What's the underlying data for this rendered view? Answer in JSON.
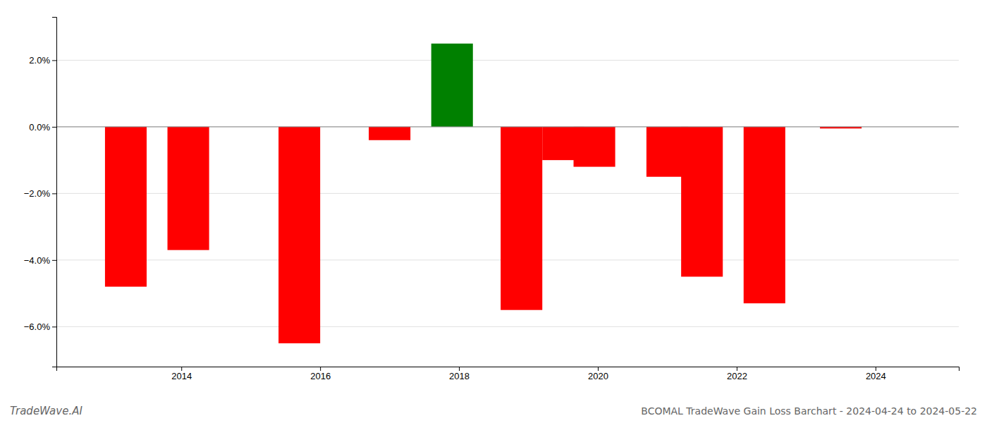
{
  "chart_data": {
    "type": "bar",
    "title": "BCOMAL TradeWave Gain Loss Barchart - 2024-04-24 to 2024-05-22",
    "annotations": [
      "TradeWave.AI"
    ],
    "x": [
      2013.2,
      2014.1,
      2015.7,
      2017.0,
      2017.9,
      2018.9,
      2019.5,
      2019.95,
      2021.0,
      2021.5,
      2022.4,
      2023.5
    ],
    "values": [
      -4.8,
      -3.7,
      -6.5,
      -0.4,
      2.5,
      -5.5,
      -1.0,
      -1.2,
      -1.5,
      -4.5,
      -5.3,
      -0.05
    ],
    "colors": [
      "#ff0000",
      "#ff0000",
      "#ff0000",
      "#ff0000",
      "#008000",
      "#ff0000",
      "#ff0000",
      "#ff0000",
      "#ff0000",
      "#ff0000",
      "#ff0000",
      "#ff0000"
    ],
    "xlim": [
      2012.2,
      2025.2
    ],
    "xticks": [
      2014,
      2016,
      2018,
      2020,
      2022,
      2024
    ],
    "ylim": [
      -7.2,
      3.3
    ],
    "yticks": [
      {
        "value": -6.0,
        "label": "−6.0%"
      },
      {
        "value": -4.0,
        "label": "−4.0%"
      },
      {
        "value": -2.0,
        "label": "−2.0%"
      },
      {
        "value": 0.0,
        "label": "0.0%"
      },
      {
        "value": 2.0,
        "label": "2.0%"
      }
    ],
    "grid": true
  }
}
